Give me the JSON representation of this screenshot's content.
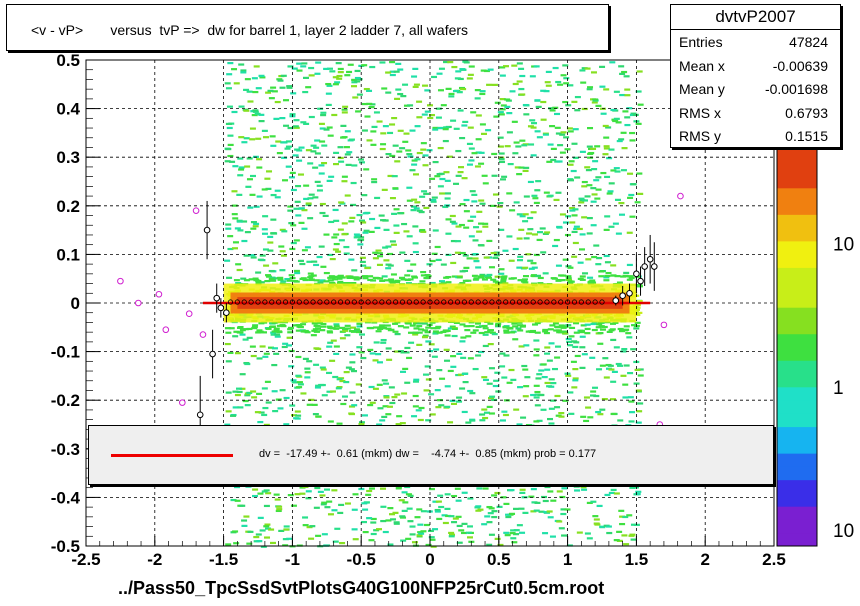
{
  "title": "<v - vP>       versus  tvP =>  dw for barrel 1, layer 2 ladder 7, all wafers",
  "stats": {
    "name": "dvtvP2007",
    "rows": [
      {
        "key": "Entries",
        "value": "47824"
      },
      {
        "key": "Mean x",
        "value": "-0.00639"
      },
      {
        "key": "Mean y",
        "value": "-0.001698"
      },
      {
        "key": "RMS x",
        "value": "0.6793"
      },
      {
        "key": "RMS y",
        "value": "0.1515"
      }
    ]
  },
  "legend": {
    "text": "dv =  -17.49 +-  0.61 (mkm) dw =    -4.74 +-  0.85 (mkm) prob = 0.177",
    "line_color": "#e00000"
  },
  "xlabel": "../Pass50_TpcSsdSvtPlotsG40G100NFP25rCut0.5cm.root",
  "chart_data": {
    "type": "heatmap",
    "xlim": [
      -2.5,
      2.5
    ],
    "ylim": [
      -0.5,
      0.5
    ],
    "x_ticks": [
      "-2.5",
      "-2",
      "-1.5",
      "-1",
      "-0.5",
      "0",
      "0.5",
      "1",
      "1.5",
      "2",
      "2.5"
    ],
    "y_ticks": [
      "-0.5",
      "-0.4",
      "-0.3",
      "-0.2",
      "-0.1",
      "0",
      "0.1",
      "0.2",
      "0.3",
      "0.4",
      "0.5"
    ],
    "x_tick_values": [
      -2.5,
      -2,
      -1.5,
      -1,
      -0.5,
      0,
      0.5,
      1,
      1.5,
      2,
      2.5
    ],
    "y_tick_values": [
      -0.5,
      -0.4,
      -0.3,
      -0.2,
      -0.1,
      0,
      0.1,
      0.2,
      0.3,
      0.4,
      0.5
    ],
    "grid": true,
    "colorbar": {
      "labels": [
        "10",
        "1",
        "10"
      ],
      "label_values": [
        0.76,
        0.4,
        0.04
      ],
      "colors": [
        "#7a1fd1",
        "#3a2ee8",
        "#1f6cf0",
        "#16b4f0",
        "#1fe0c8",
        "#28e08a",
        "#3ee040",
        "#86e020",
        "#c8ee18",
        "#f0f010",
        "#f0c010",
        "#f08010",
        "#e04010"
      ]
    },
    "fit_line": {
      "x": [
        -1.65,
        1.6
      ],
      "y": [
        0,
        0
      ],
      "color": "#e00000"
    },
    "band": {
      "x": [
        -1.5,
        1.5
      ],
      "core_halfwidth": 0.012,
      "halo_halfwidth": 0.04
    },
    "profile_points": [
      {
        "x": -2.25,
        "y": 0.045,
        "err": 0
      },
      {
        "x": -2.12,
        "y": 0.0,
        "err": 0
      },
      {
        "x": -1.97,
        "y": 0.018,
        "err": 0
      },
      {
        "x": -1.92,
        "y": -0.055,
        "err": 0
      },
      {
        "x": -1.8,
        "y": -0.205,
        "err": 0
      },
      {
        "x": -1.75,
        "y": -0.022,
        "err": 0
      },
      {
        "x": -1.7,
        "y": 0.19,
        "err": 0
      },
      {
        "x": -1.65,
        "y": -0.065,
        "err": 0
      },
      {
        "x": -1.62,
        "y": 0.15,
        "err": 0.06
      },
      {
        "x": -1.67,
        "y": -0.23,
        "err": 0.08
      },
      {
        "x": -1.58,
        "y": -0.105,
        "err": 0.05
      },
      {
        "x": -1.55,
        "y": 0.01,
        "err": 0.03
      },
      {
        "x": -1.52,
        "y": -0.01,
        "err": 0.02
      },
      {
        "x": -1.48,
        "y": -0.02,
        "err": 0.02
      },
      {
        "x": 1.35,
        "y": 0.005,
        "err": 0.01
      },
      {
        "x": 1.4,
        "y": 0.015,
        "err": 0.02
      },
      {
        "x": 1.45,
        "y": 0.02,
        "err": 0.02
      },
      {
        "x": 1.5,
        "y": 0.06,
        "err": 0.04
      },
      {
        "x": 1.53,
        "y": 0.045,
        "err": 0.03
      },
      {
        "x": 1.56,
        "y": 0.075,
        "err": 0.04
      },
      {
        "x": 1.6,
        "y": 0.09,
        "err": 0.05
      },
      {
        "x": 1.63,
        "y": 0.075,
        "err": 0.05
      },
      {
        "x": 1.7,
        "y": -0.045,
        "err": 0
      },
      {
        "x": 1.82,
        "y": 0.22,
        "err": 0
      },
      {
        "x": 1.67,
        "y": -0.25,
        "err": 0
      }
    ]
  }
}
